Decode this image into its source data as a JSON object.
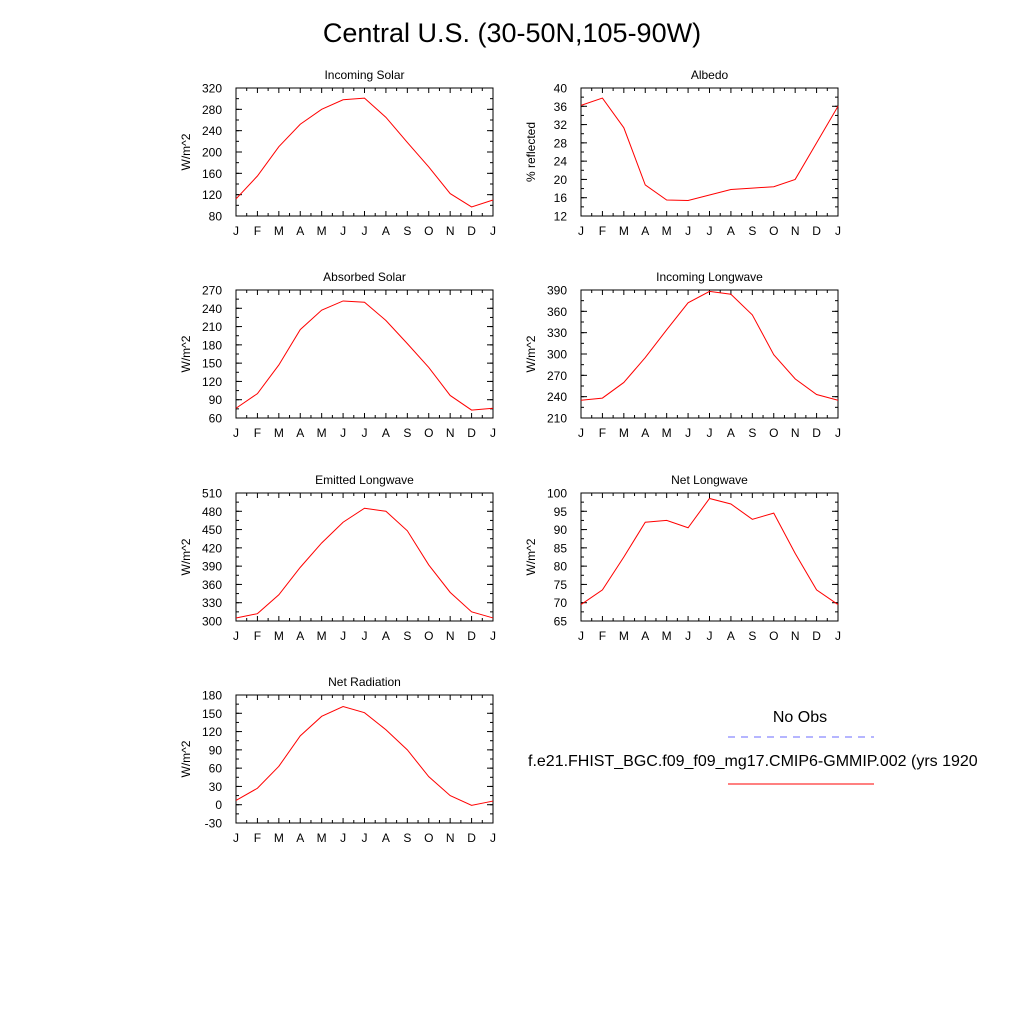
{
  "page": {
    "title": "Central U.S. (30-50N,105-90W)"
  },
  "legend": {
    "obs_label": "No Obs",
    "model_label": "f.e21.FHIST_BGC.f09_f09_mg17.CMIP6-GMMIP.002 (yrs 1920",
    "obs_color": "#6b6bff",
    "model_color": "#ff0000"
  },
  "chart_data": [
    {
      "type": "line",
      "title": "Incoming Solar",
      "ylabel": "W/m^2",
      "categories": [
        "J",
        "F",
        "M",
        "A",
        "M",
        "J",
        "J",
        "A",
        "S",
        "O",
        "N",
        "D",
        "J"
      ],
      "ylim": [
        80,
        320
      ],
      "yticks": [
        80,
        120,
        160,
        200,
        240,
        280,
        320
      ],
      "yminor": 20,
      "series": [
        {
          "values": [
            112,
            155,
            210,
            252,
            280,
            298,
            301,
            265,
            218,
            172,
            122,
            97,
            110
          ]
        }
      ]
    },
    {
      "type": "line",
      "title": "Albedo",
      "ylabel": "% reflected",
      "categories": [
        "J",
        "F",
        "M",
        "A",
        "M",
        "J",
        "J",
        "A",
        "S",
        "O",
        "N",
        "D",
        "J"
      ],
      "ylim": [
        12,
        40
      ],
      "yticks": [
        12,
        16,
        20,
        24,
        28,
        32,
        36,
        40
      ],
      "yminor": 2,
      "series": [
        {
          "values": [
            36.2,
            37.8,
            31.3,
            18.8,
            15.5,
            15.4,
            16.6,
            17.8,
            18.1,
            18.4,
            20.0,
            28.0,
            36.0
          ]
        }
      ]
    },
    {
      "type": "line",
      "title": "Absorbed Solar",
      "ylabel": "W/m^2",
      "categories": [
        "J",
        "F",
        "M",
        "A",
        "M",
        "J",
        "J",
        "A",
        "S",
        "O",
        "N",
        "D",
        "J"
      ],
      "ylim": [
        60,
        270
      ],
      "yticks": [
        60,
        90,
        120,
        150,
        180,
        210,
        240,
        270
      ],
      "yminor": 15,
      "series": [
        {
          "values": [
            76,
            100,
            147,
            205,
            237,
            252,
            250,
            220,
            182,
            143,
            97,
            73,
            76
          ]
        }
      ]
    },
    {
      "type": "line",
      "title": "Incoming Longwave",
      "ylabel": "W/m^2",
      "categories": [
        "J",
        "F",
        "M",
        "A",
        "M",
        "J",
        "J",
        "A",
        "S",
        "O",
        "N",
        "D",
        "J"
      ],
      "ylim": [
        210,
        390
      ],
      "yticks": [
        210,
        240,
        270,
        300,
        330,
        360,
        390
      ],
      "yminor": 15,
      "series": [
        {
          "values": [
            235,
            238,
            260,
            295,
            334,
            372,
            388,
            384,
            355,
            299,
            265,
            243,
            235
          ]
        }
      ]
    },
    {
      "type": "line",
      "title": "Emitted Longwave",
      "ylabel": "W/m^2",
      "categories": [
        "J",
        "F",
        "M",
        "A",
        "M",
        "J",
        "J",
        "A",
        "S",
        "O",
        "N",
        "D",
        "J"
      ],
      "ylim": [
        300,
        510
      ],
      "yticks": [
        300,
        330,
        360,
        390,
        420,
        450,
        480,
        510
      ],
      "yminor": 15,
      "series": [
        {
          "values": [
            305,
            312,
            343,
            388,
            428,
            462,
            485,
            480,
            448,
            392,
            347,
            315,
            305
          ]
        }
      ]
    },
    {
      "type": "line",
      "title": "Net Longwave",
      "ylabel": "W/m^2",
      "categories": [
        "J",
        "F",
        "M",
        "A",
        "M",
        "J",
        "J",
        "A",
        "S",
        "O",
        "N",
        "D",
        "J"
      ],
      "ylim": [
        65,
        100
      ],
      "yticks": [
        65,
        70,
        75,
        80,
        85,
        90,
        95,
        100
      ],
      "yminor": 2.5,
      "series": [
        {
          "values": [
            69.5,
            73.5,
            82.5,
            92.0,
            92.5,
            90.5,
            98.5,
            97.0,
            92.8,
            94.5,
            83.5,
            73.5,
            69.5
          ]
        }
      ]
    },
    {
      "type": "line",
      "title": "Net Radiation",
      "ylabel": "W/m^2",
      "categories": [
        "J",
        "F",
        "M",
        "A",
        "M",
        "J",
        "J",
        "A",
        "S",
        "O",
        "N",
        "D",
        "J"
      ],
      "ylim": [
        -30,
        180
      ],
      "yticks": [
        -30,
        0,
        30,
        60,
        90,
        120,
        150,
        180
      ],
      "yminor": 15,
      "series": [
        {
          "values": [
            7,
            27,
            63,
            113,
            145,
            161,
            151,
            123,
            90,
            46,
            15,
            -1,
            6
          ]
        }
      ]
    }
  ]
}
